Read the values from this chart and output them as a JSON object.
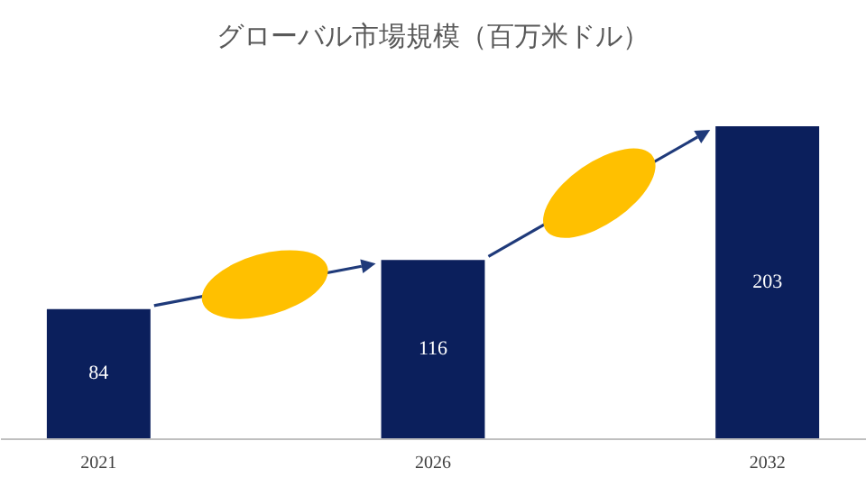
{
  "chart_data": {
    "type": "bar",
    "title": "グローバル市場規模（百万米ドル）",
    "categories": [
      "2021",
      "2026",
      "2032"
    ],
    "values": [
      84,
      116,
      203
    ],
    "color": "#0b1f5c",
    "data_labels": true,
    "grid": false
  }
}
